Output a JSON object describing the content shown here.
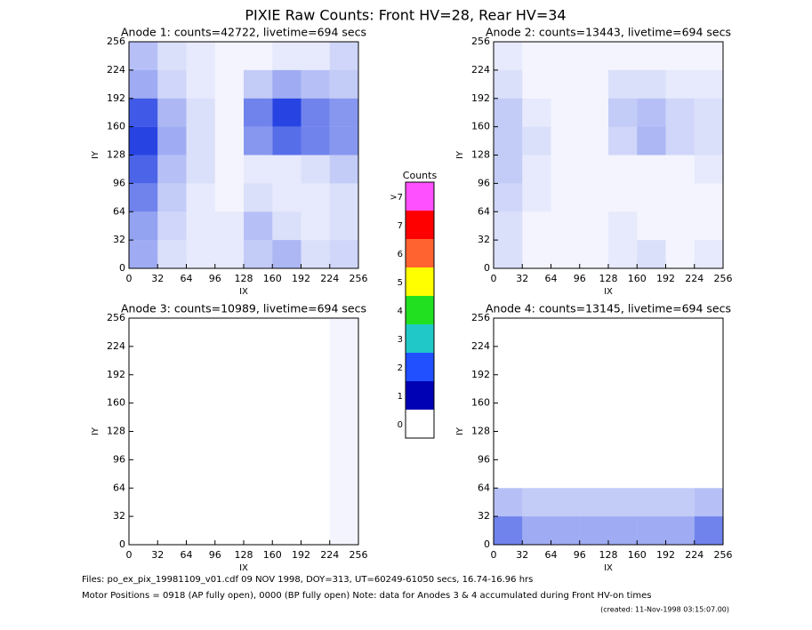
{
  "header": {
    "title": "PIXIE Raw Counts:  Front HV=28, Rear HV=34"
  },
  "chart_data": [
    {
      "type": "heatmap",
      "title": "Anode 1: counts=42722, livetime=694 secs",
      "xlabel": "IX",
      "ylabel": "IY",
      "xlim": [
        0,
        256
      ],
      "ylim": [
        0,
        256
      ],
      "xticks": [
        0,
        32,
        64,
        96,
        128,
        160,
        192,
        224,
        256
      ],
      "yticks": [
        0,
        32,
        64,
        96,
        128,
        160,
        192,
        224,
        256
      ],
      "z": [
        [
          0.8,
          0.3,
          0.2,
          0.2,
          0.5,
          0.7,
          0.3,
          0.4
        ],
        [
          0.9,
          0.4,
          0.2,
          0.2,
          0.6,
          0.3,
          0.2,
          0.3
        ],
        [
          1.2,
          0.5,
          0.2,
          0.1,
          0.3,
          0.2,
          0.2,
          0.3
        ],
        [
          1.5,
          0.6,
          0.3,
          0.1,
          0.2,
          0.2,
          0.3,
          0.5
        ],
        [
          1.8,
          0.8,
          0.3,
          0.1,
          1.0,
          1.4,
          1.2,
          1.0
        ],
        [
          1.6,
          0.7,
          0.3,
          0.1,
          1.2,
          1.8,
          1.2,
          1.0
        ],
        [
          0.8,
          0.4,
          0.2,
          0.1,
          0.5,
          0.8,
          0.6,
          0.5
        ],
        [
          0.6,
          0.3,
          0.2,
          0.1,
          0.1,
          0.2,
          0.2,
          0.4
        ]
      ]
    },
    {
      "type": "heatmap",
      "title": "Anode 2: counts=13443, livetime=694 secs",
      "xlabel": "IX",
      "ylabel": "IY",
      "xlim": [
        0,
        256
      ],
      "ylim": [
        0,
        256
      ],
      "xticks": [
        0,
        32,
        64,
        96,
        128,
        160,
        192,
        224,
        256
      ],
      "yticks": [
        0,
        32,
        64,
        96,
        128,
        160,
        192,
        224,
        256
      ],
      "z": [
        [
          0.3,
          0.1,
          0.1,
          0.1,
          0.2,
          0.3,
          0.1,
          0.2
        ],
        [
          0.3,
          0.1,
          0.1,
          0.1,
          0.2,
          0.1,
          0.1,
          0.1
        ],
        [
          0.4,
          0.2,
          0.1,
          0.1,
          0.1,
          0.1,
          0.1,
          0.1
        ],
        [
          0.5,
          0.2,
          0.1,
          0.1,
          0.1,
          0.1,
          0.1,
          0.2
        ],
        [
          0.5,
          0.3,
          0.1,
          0.1,
          0.4,
          0.7,
          0.4,
          0.3
        ],
        [
          0.5,
          0.2,
          0.1,
          0.1,
          0.5,
          0.6,
          0.4,
          0.3
        ],
        [
          0.3,
          0.1,
          0.1,
          0.1,
          0.3,
          0.3,
          0.2,
          0.2
        ],
        [
          0.2,
          0.1,
          0.1,
          0.1,
          0.1,
          0.1,
          0.1,
          0.1
        ]
      ]
    },
    {
      "type": "heatmap",
      "title": "Anode 3: counts=10989, livetime=694 secs",
      "xlabel": "IX",
      "ylabel": "IY",
      "xlim": [
        0,
        256
      ],
      "ylim": [
        0,
        256
      ],
      "xticks": [
        0,
        32,
        64,
        96,
        128,
        160,
        192,
        224,
        256
      ],
      "yticks": [
        0,
        32,
        64,
        96,
        128,
        160,
        192,
        224,
        256
      ],
      "z": [
        [
          0,
          0,
          0,
          0,
          0,
          0,
          0,
          0.1
        ],
        [
          0,
          0,
          0,
          0,
          0,
          0,
          0,
          0.1
        ],
        [
          0,
          0,
          0,
          0,
          0,
          0,
          0,
          0.1
        ],
        [
          0,
          0,
          0,
          0,
          0,
          0,
          0,
          0.1
        ],
        [
          0,
          0,
          0,
          0,
          0,
          0,
          0,
          0.1
        ],
        [
          0,
          0,
          0,
          0,
          0,
          0,
          0,
          0.1
        ],
        [
          0,
          0,
          0,
          0,
          0,
          0,
          0,
          0.1
        ],
        [
          0,
          0,
          0,
          0,
          0,
          0,
          0,
          0.1
        ]
      ]
    },
    {
      "type": "heatmap",
      "title": "Anode 4: counts=13145, livetime=694 secs",
      "xlabel": "IX",
      "ylabel": "IY",
      "xlim": [
        0,
        256
      ],
      "ylim": [
        0,
        256
      ],
      "xticks": [
        0,
        32,
        64,
        96,
        128,
        160,
        192,
        224,
        256
      ],
      "yticks": [
        0,
        32,
        64,
        96,
        128,
        160,
        192,
        224,
        256
      ],
      "z": [
        [
          1.2,
          0.8,
          0.8,
          0.8,
          0.8,
          0.8,
          0.8,
          1.2
        ],
        [
          0.6,
          0.5,
          0.5,
          0.5,
          0.5,
          0.5,
          0.5,
          0.6
        ],
        [
          0,
          0,
          0,
          0,
          0,
          0,
          0,
          0
        ],
        [
          0,
          0,
          0,
          0,
          0,
          0,
          0,
          0
        ],
        [
          0,
          0,
          0,
          0,
          0,
          0,
          0,
          0
        ],
        [
          0,
          0,
          0,
          0,
          0,
          0,
          0,
          0
        ],
        [
          0,
          0,
          0,
          0,
          0,
          0,
          0,
          0
        ],
        [
          0,
          0,
          0,
          0,
          0,
          0,
          0,
          0
        ]
      ]
    }
  ],
  "colorbar": {
    "title": "Counts",
    "levels": [
      0,
      1,
      2,
      3,
      4,
      5,
      6,
      7,
      {
        "value": 8,
        "label": ">7"
      }
    ],
    "colors": [
      "#ffffff",
      "#0000b4",
      "#2050ff",
      "#20c8c8",
      "#20e020",
      "#ffff00",
      "#ff6430",
      "#ff0000",
      "#ff50ff"
    ]
  },
  "footer": {
    "files": "Files: po_ex_pix_19981109_v01.cdf    09 NOV 1998, DOY=313, UT=60249-61050 secs, 16.74-16.96 hrs",
    "motor": "Motor Positions = 0918 (AP fully open), 0000 (BP fully open)    Note: data for Anodes 3 & 4 accumulated during Front HV-on times",
    "created": "(created: 11-Nov-1998 03:15:07.00)"
  }
}
